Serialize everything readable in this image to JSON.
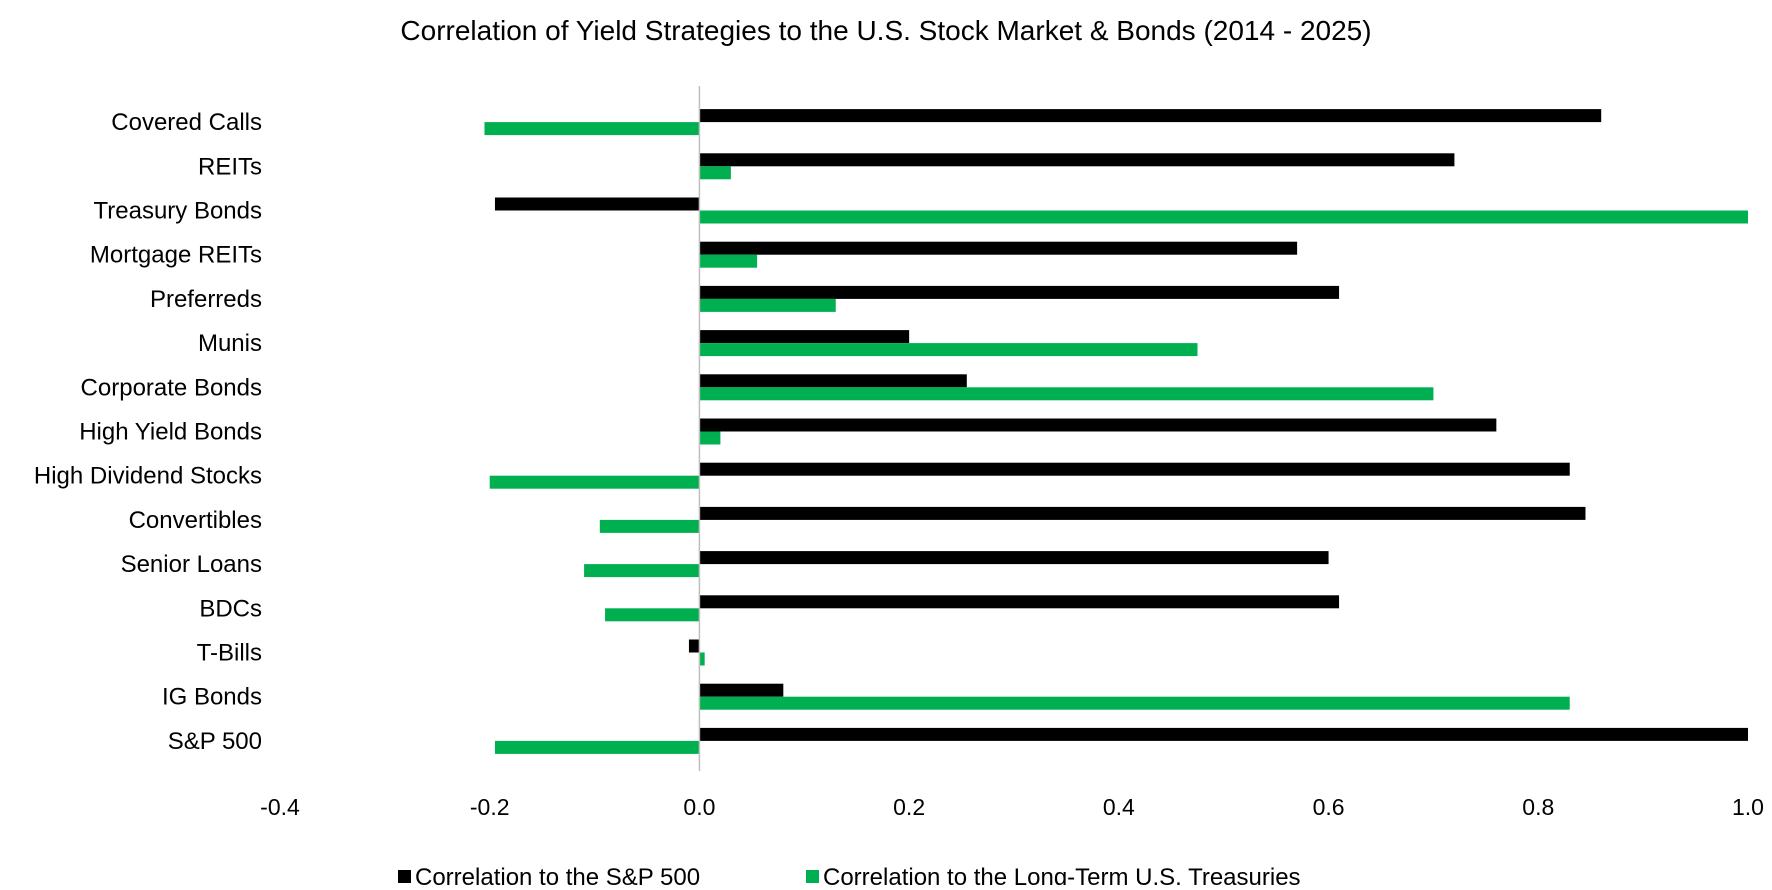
{
  "chart_data": {
    "type": "bar",
    "orientation": "horizontal",
    "title": "Correlation of Yield Strategies to the U.S. Stock Market & Bonds (2014 - 2025)",
    "xlabel": "",
    "ylabel": "",
    "xlim": [
      -0.4,
      1.0
    ],
    "x_ticks": [
      "-0.4",
      "-0.2",
      "0.0",
      "0.2",
      "0.4",
      "0.6",
      "0.8",
      "1.0"
    ],
    "grid": false,
    "legend_position": "bottom",
    "categories": [
      "Covered Calls",
      "REITs",
      "Treasury Bonds",
      "Mortgage REITs",
      "Preferreds",
      "Munis",
      "Corporate Bonds",
      "High Yield Bonds",
      "High Dividend Stocks",
      "Convertibles",
      "Senior Loans",
      "BDCs",
      "T-Bills",
      "IG Bonds",
      "S&P 500"
    ],
    "series": [
      {
        "name": "Correlation to the S&P 500",
        "color": "#000000",
        "values": [
          0.86,
          0.72,
          -0.195,
          0.57,
          0.61,
          0.2,
          0.255,
          0.76,
          0.83,
          0.845,
          0.6,
          0.61,
          -0.01,
          0.08,
          1.0
        ]
      },
      {
        "name": "Correlation to the Long-Term U.S. Treasuries",
        "color": "#00b050",
        "values": [
          -0.205,
          0.03,
          1.0,
          0.055,
          0.13,
          0.475,
          0.7,
          0.02,
          -0.2,
          -0.095,
          -0.11,
          -0.09,
          0.005,
          0.83,
          -0.195
        ]
      }
    ]
  }
}
